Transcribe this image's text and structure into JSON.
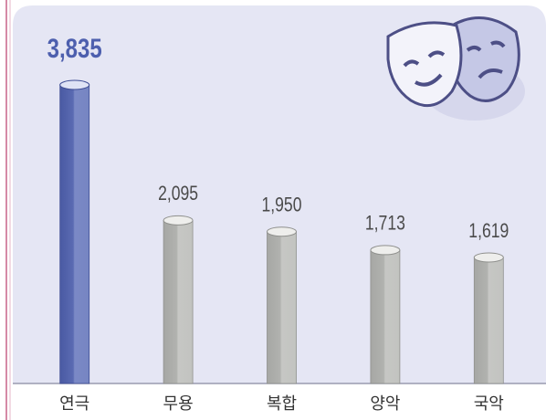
{
  "chart_data": {
    "type": "bar",
    "categories": [
      "연극",
      "무용",
      "복합",
      "양악",
      "국악"
    ],
    "values": [
      3835,
      2095,
      1950,
      1713,
      1619
    ],
    "value_labels": [
      "3,835",
      "2,095",
      "1,950",
      "1,713",
      "1,619"
    ],
    "colors": [
      "#5a6ab2",
      "#b8b9b6",
      "#b8b9b6",
      "#b8b9b6",
      "#b8b9b6"
    ]
  }
}
